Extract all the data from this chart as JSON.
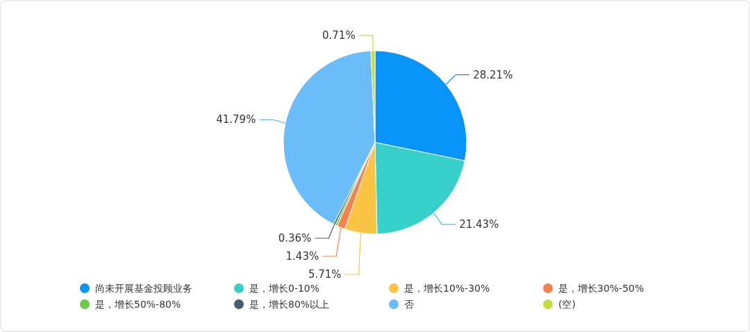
{
  "chart_data": {
    "type": "pie",
    "categories": [
      "尚未开展基金投顾业务",
      "是，增长0-10%",
      "是，增长10%-30%",
      "是，增长30%-50%",
      "是，增长50%-80%",
      "是，增长80%以上",
      "否",
      "(空)"
    ],
    "values": [
      28.21,
      21.43,
      5.71,
      1.43,
      0.36,
      0.36,
      41.79,
      0.71
    ],
    "colors": [
      "#0995f8",
      "#36cfc9",
      "#fbc444",
      "#f7814e",
      "#6bcb48",
      "#4b5c6a",
      "#6bbdf9",
      "#c3dd3f"
    ],
    "value_labels": [
      "28.21%",
      "21.43%",
      "5.71%",
      "1.43%",
      null,
      "0.36%",
      "41.79%",
      "0.71%"
    ],
    "legend": "bottom"
  }
}
